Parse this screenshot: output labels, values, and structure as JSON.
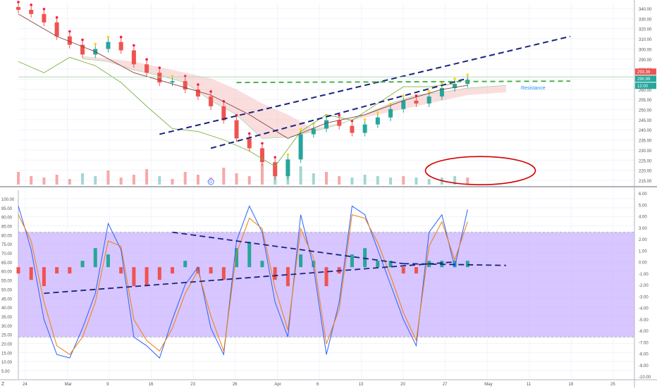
{
  "chart_data": [
    {
      "type": "candlestick",
      "panel": "price",
      "colors": {
        "up": "#26a69a",
        "down": "#ef5350",
        "background": "#ffffff",
        "grid": "#f0f3fa",
        "volume_up": "#a5d6d2",
        "volume_down": "#f5a9a8"
      },
      "y_ticks": [
        "340.00",
        "330.00",
        "320.00",
        "310.00",
        "300.00",
        "290.00",
        "280.00",
        "270.00",
        "260.00",
        "255.00",
        "250.00",
        "245.00",
        "240.00",
        "235.00",
        "230.00",
        "225.00",
        "220.00",
        "215.00"
      ],
      "x_ticks": [
        "24",
        "Mar",
        "9",
        "16",
        "23",
        "26",
        "Apr",
        "6",
        "13",
        "20",
        "27",
        "May",
        "11",
        "18",
        "25"
      ],
      "price_labels": [
        {
          "text": "293.36",
          "color": "#ef5350"
        },
        {
          "text": "290.99",
          "color": "#26a69a"
        },
        {
          "text": "12:00",
          "color": "#26a69a"
        }
      ],
      "annotations": {
        "resistance": "Resistance",
        "marker_letter": "D"
      },
      "series": [
        {
          "name": "",
          "role": "close",
          "x": [
            0,
            2,
            4,
            6,
            8,
            10,
            12,
            14,
            16,
            18,
            20,
            22,
            24,
            26,
            28,
            30,
            32,
            34,
            36,
            38,
            40,
            42,
            44,
            46,
            48,
            50,
            52,
            54,
            56,
            58,
            60,
            62,
            64,
            66,
            68,
            70
          ],
          "values": [
            337,
            334,
            328,
            318,
            312,
            305,
            309,
            314,
            308,
            298,
            292,
            285,
            286,
            280,
            275,
            268,
            258,
            245,
            238,
            228,
            218,
            230,
            248,
            252,
            258,
            254,
            249,
            255,
            260,
            266,
            272,
            270,
            275,
            281,
            284,
            287
          ]
        },
        {
          "name": "",
          "role": "ichimoku-lagging",
          "x": [
            0,
            4,
            8,
            12,
            16,
            20,
            24,
            28,
            32,
            36,
            40,
            44,
            48,
            52,
            56,
            60,
            64,
            68
          ],
          "values": [
            300,
            292,
            303,
            297,
            285,
            268,
            252,
            250,
            244,
            236,
            225,
            250,
            262,
            258,
            270,
            282,
            282,
            284
          ]
        },
        {
          "name": "",
          "role": "ichimoku-base",
          "x": [
            0,
            6,
            12,
            18,
            24,
            30,
            36,
            42,
            48,
            54,
            60,
            66,
            70
          ],
          "values": [
            334,
            318,
            307,
            292,
            284,
            276,
            262,
            245,
            256,
            262,
            272,
            280,
            283
          ]
        }
      ],
      "cloud": {
        "x": [
          10,
          14,
          18,
          22,
          26,
          30,
          34,
          38,
          42,
          46,
          50,
          54,
          58,
          62,
          66,
          70,
          76
        ],
        "span_a": [
          302,
          300,
          294,
          290,
          285,
          272,
          262,
          245,
          246,
          250,
          255,
          262,
          270,
          276,
          278,
          281,
          283
        ],
        "span_b": [
          304,
          302,
          300,
          296,
          292,
          288,
          280,
          270,
          262,
          252,
          256,
          260,
          264,
          268,
          272,
          276,
          278
        ]
      },
      "trendlines": {
        "blue_upper": [
          [
            22,
            248
          ],
          [
            86,
            318
          ]
        ],
        "blue_lower": [
          [
            30,
            238
          ],
          [
            70,
            288
          ]
        ],
        "green_resistance": [
          [
            34,
            285
          ],
          [
            86,
            286
          ]
        ]
      },
      "volume": [
        18,
        12,
        10,
        14,
        8,
        16,
        12,
        20,
        10,
        14,
        22,
        12,
        8,
        18,
        14,
        10,
        24,
        16,
        12,
        30,
        20,
        34,
        26,
        16,
        18,
        12,
        10,
        14,
        12,
        10,
        12,
        10,
        8,
        10,
        12,
        10
      ]
    },
    {
      "type": "oscillator",
      "panel": "indicator",
      "y_ticks_left": [
        "100.00",
        "95.00",
        "90.00",
        "85.00",
        "80.00",
        "75.00",
        "70.00",
        "65.00",
        "60.00",
        "55.00",
        "50.00",
        "45.00",
        "40.00",
        "35.00",
        "30.00",
        "25.00",
        "20.00",
        "15.00",
        "10.00",
        "5.00"
      ],
      "y_ticks_right": [
        "6.00",
        "5.00",
        "4.00",
        "3.00",
        "2.00",
        "1.00",
        "0.00",
        "-1.00",
        "-2.00",
        "-3.00",
        "-4.00",
        "-5.00",
        "-6.00",
        "-7.00",
        "-8.00",
        "-9.00",
        "-10.00"
      ],
      "band": {
        "upper": 80,
        "lower": 20,
        "fill": "#c9b3ff"
      },
      "colors": {
        "hist_up": "#26a69a",
        "hist_down": "#ef5350",
        "line1": "#2962ff",
        "line2": "#f57c00",
        "line3": "#4fc3f7"
      },
      "x": [
        0,
        2,
        4,
        6,
        8,
        10,
        12,
        14,
        16,
        18,
        20,
        22,
        24,
        26,
        28,
        30,
        32,
        34,
        36,
        38,
        40,
        42,
        44,
        46,
        48,
        50,
        52,
        54,
        56,
        58,
        60,
        62,
        64,
        66,
        68,
        70
      ],
      "line1": [
        95,
        70,
        30,
        10,
        8,
        25,
        45,
        85,
        70,
        20,
        15,
        8,
        30,
        50,
        60,
        25,
        10,
        75,
        95,
        80,
        40,
        20,
        90,
        60,
        10,
        40,
        95,
        90,
        70,
        50,
        30,
        15,
        80,
        90,
        60,
        93
      ],
      "line2": [
        90,
        75,
        40,
        15,
        10,
        20,
        40,
        75,
        72,
        30,
        18,
        12,
        25,
        45,
        58,
        32,
        12,
        68,
        88,
        82,
        48,
        24,
        82,
        65,
        16,
        36,
        90,
        88,
        74,
        55,
        34,
        18,
        72,
        86,
        64,
        86
      ],
      "histogram": [
        -1,
        -2,
        -3,
        -1,
        -1,
        1,
        3,
        2,
        -1,
        -3,
        -3,
        -2,
        -1,
        1,
        -1,
        -1,
        -2,
        3,
        4,
        1,
        -2,
        -3,
        2,
        1,
        -3,
        -1,
        2,
        3,
        1,
        1,
        -1,
        -1,
        1,
        1,
        1,
        1
      ],
      "trendlines": {
        "blue_upper": [
          [
            24,
            80
          ],
          [
            60,
            62
          ]
        ],
        "blue_lower": [
          [
            4,
            45
          ],
          [
            68,
            63
          ]
        ],
        "dashed_end": [
          [
            60,
            62
          ],
          [
            76,
            61
          ]
        ]
      }
    }
  ],
  "toolbar": {
    "bottom_left": "Z"
  }
}
